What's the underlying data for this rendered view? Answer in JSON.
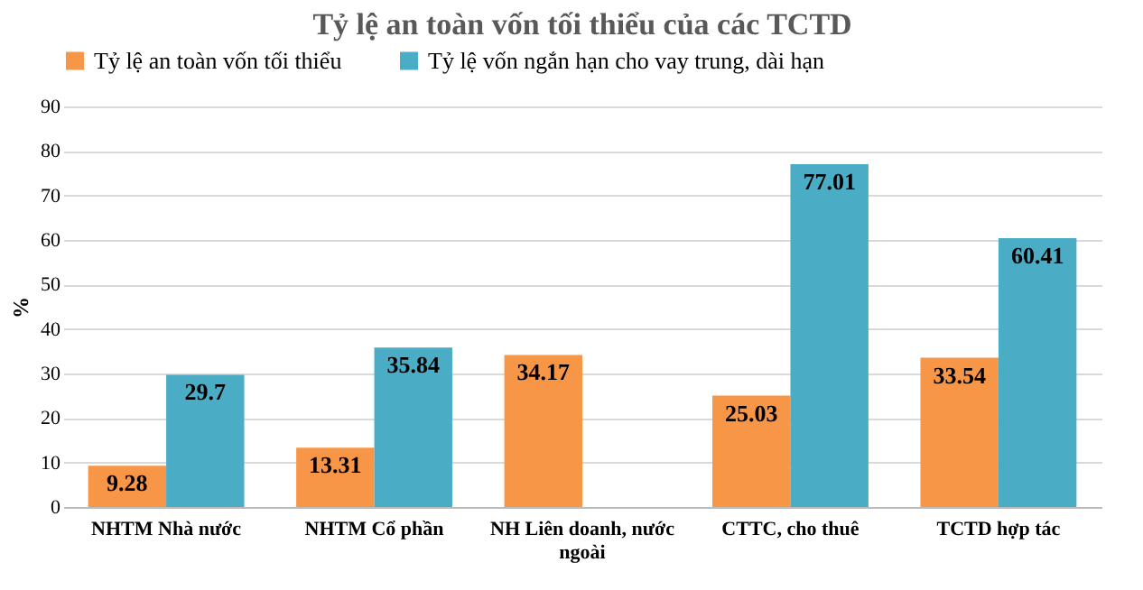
{
  "chart_data": {
    "type": "bar",
    "title": "Tỷ lệ an toàn vốn tối thiểu của các TCTD",
    "ylabel": "%",
    "categories": [
      "NHTM Nhà nước",
      "NHTM Cổ phần",
      "NH Liên doanh, nước ngoài",
      "CTTC, cho thuê",
      "TCTD hợp tác"
    ],
    "series": [
      {
        "name": "Tỷ lệ an toàn vốn tối thiểu",
        "color": "#f79646",
        "values": [
          9.28,
          13.31,
          34.17,
          25.03,
          33.54
        ]
      },
      {
        "name": "Tỷ lệ vốn ngắn hạn cho vay trung, dài hạn",
        "color": "#4bacc6",
        "values": [
          29.7,
          35.84,
          null,
          77.01,
          60.41
        ]
      }
    ],
    "ylim": [
      0,
      90
    ],
    "yticks": [
      0,
      10,
      20,
      30,
      40,
      50,
      60,
      70,
      80,
      90
    ],
    "grid": "y",
    "legend": "top",
    "data_labels": true
  }
}
